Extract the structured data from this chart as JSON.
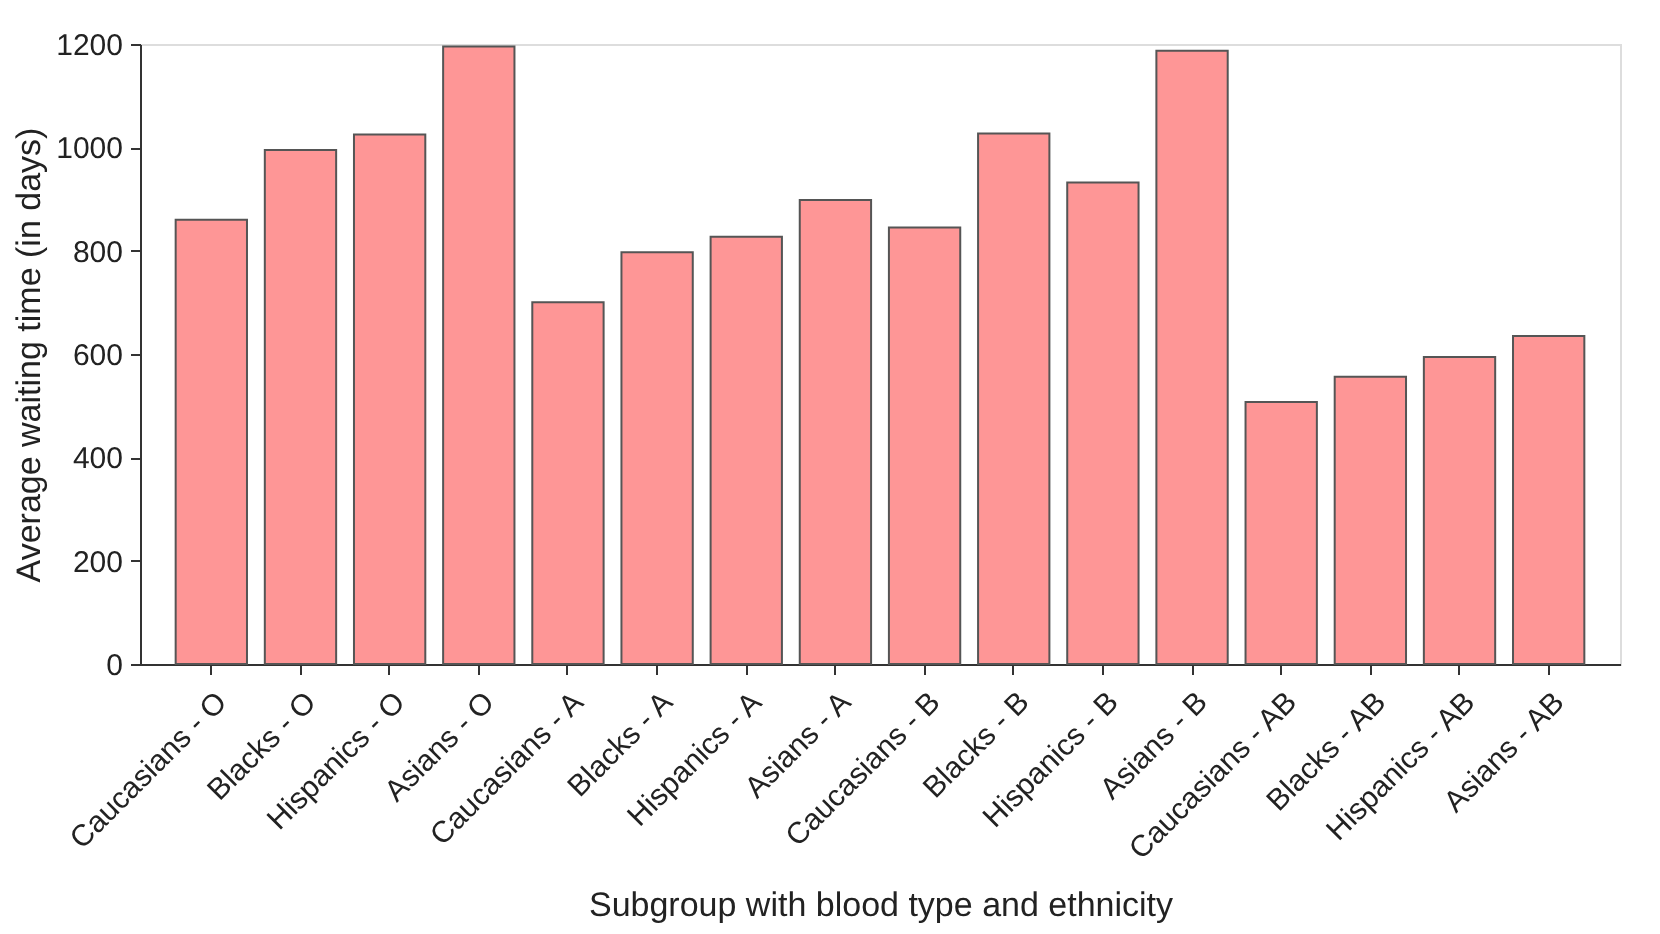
{
  "chart_data": {
    "type": "bar",
    "xlabel": "Subgroup with blood type and ethnicity",
    "ylabel": "Average waiting time (in days)",
    "categories": [
      "Caucasians - O",
      "Blacks - O",
      "Hispanics - O",
      "Asians - O",
      "Caucasians - A",
      "Blacks - A",
      "Hispanics - A",
      "Asians - A",
      "Caucasians - B",
      "Blacks - B",
      "Hispanics - B",
      "Asians - B",
      "Caucasians - AB",
      "Blacks - AB",
      "Hispanics - AB",
      "Asians - AB"
    ],
    "values": [
      860,
      995,
      1025,
      1195,
      700,
      797,
      827,
      898,
      845,
      1027,
      932,
      1187,
      507,
      556,
      594,
      635
    ],
    "color": "#fe9696",
    "ylim": [
      0,
      1200
    ],
    "yticks": [
      0,
      200,
      400,
      600,
      800,
      1000,
      1200
    ],
    "grid": false
  }
}
